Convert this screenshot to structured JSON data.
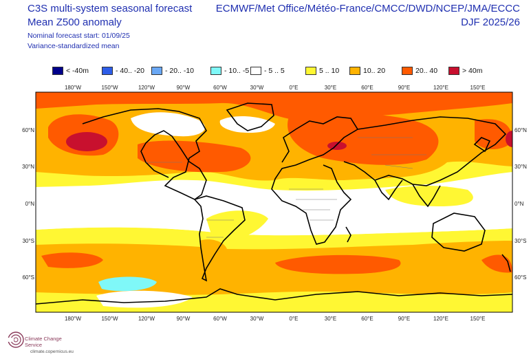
{
  "header": {
    "title_line1": "C3S multi-system seasonal forecast",
    "title_line2": "Mean Z500 anomaly",
    "subtitle_line1": "Nominal forecast start: 01/09/25",
    "subtitle_line2": "Variance-standardized mean",
    "systems": "ECMWF/Met Office/Météo-France/CMCC/DWD/NCEP/JMA/ECCC",
    "season": "DJF 2025/26"
  },
  "legend": [
    {
      "label": "< -40m",
      "color": "#00008b"
    },
    {
      "label": "- 40.. -20",
      "color": "#2d5de8"
    },
    {
      "label": "- 20.. -10",
      "color": "#6aa8f5"
    },
    {
      "label": "- 10.. -5",
      "color": "#7ff8f8"
    },
    {
      "label": "- 5 .. 5",
      "color": "#ffffff"
    },
    {
      "label": "5 .. 10",
      "color": "#fff733"
    },
    {
      "label": "10.. 20",
      "color": "#ffb300"
    },
    {
      "label": "20.. 40",
      "color": "#ff5a00"
    },
    {
      "label": "> 40m",
      "color": "#c8102e"
    }
  ],
  "lon_labels": [
    "180°W",
    "150°W",
    "120°W",
    "90°W",
    "60°W",
    "30°W",
    "0°E",
    "30°E",
    "60°E",
    "90°E",
    "120°E",
    "150°E"
  ],
  "lat_labels": [
    "60°N",
    "30°N",
    "0°N",
    "30°S",
    "60°S"
  ],
  "logo": {
    "name": "Climate Change Service",
    "url": "climate.copernicus.eu"
  }
}
